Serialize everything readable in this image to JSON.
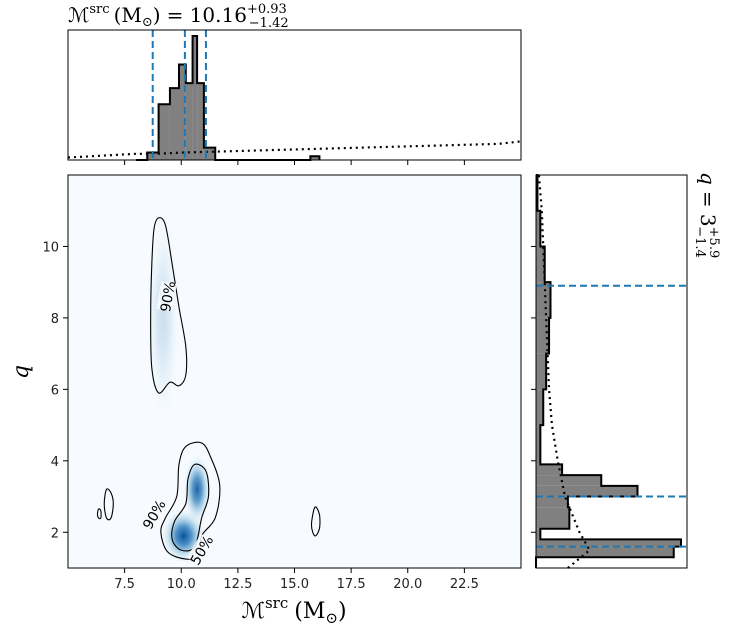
{
  "chart_data": {
    "type": "corner",
    "top_title": {
      "symbol": "ℳ",
      "sup": "src",
      "unit": "(M",
      "unit_sub": "⊙",
      "unit_close": ")",
      "equals": "= 10.16",
      "plus": "+0.93",
      "minus": "−1.42"
    },
    "right_title": {
      "symbol": "q",
      "equals": "= 3",
      "plus": "+5.9",
      "minus": "−1.4"
    },
    "xlabel": {
      "symbol": "ℳ",
      "sup": "src",
      "unit": "(M",
      "unit_sub": "⊙",
      "unit_close": ")"
    },
    "ylabel": "q",
    "xlim": [
      5,
      25
    ],
    "ylim": [
      1,
      12
    ],
    "xticks": [
      {
        "value": 7.5,
        "label": "7.5"
      },
      {
        "value": 10.0,
        "label": "10.0"
      },
      {
        "value": 12.5,
        "label": "12.5"
      },
      {
        "value": 15.0,
        "label": "15.0"
      },
      {
        "value": 17.5,
        "label": "17.5"
      },
      {
        "value": 20.0,
        "label": "20.0"
      },
      {
        "value": 22.5,
        "label": "22.5"
      }
    ],
    "yticks": [
      {
        "value": 2,
        "label": "2"
      },
      {
        "value": 4,
        "label": "4"
      },
      {
        "value": 6,
        "label": "6"
      },
      {
        "value": 8,
        "label": "8"
      },
      {
        "value": 10,
        "label": "10"
      }
    ],
    "mc_quantile_lines": [
      8.74,
      10.16,
      11.09
    ],
    "q_quantile_lines": [
      1.6,
      3.0,
      8.9
    ],
    "mc_histogram": {
      "bin_edges": [
        8.0,
        8.5,
        9.0,
        9.5,
        9.9,
        10.2,
        10.5,
        10.7,
        11.0,
        11.5,
        15.7,
        16.1
      ],
      "density": [
        0.0,
        0.06,
        0.45,
        0.58,
        0.77,
        0.62,
        1.0,
        0.62,
        0.1,
        0.0,
        0.03
      ]
    },
    "mc_prior_dotted": {
      "x": [
        5,
        6,
        7,
        8,
        9,
        10,
        12,
        14,
        16,
        18,
        20,
        22,
        24,
        25
      ],
      "y": [
        0.02,
        0.03,
        0.04,
        0.05,
        0.05,
        0.06,
        0.07,
        0.08,
        0.09,
        0.1,
        0.11,
        0.12,
        0.13,
        0.15
      ]
    },
    "q_histogram": {
      "bin_edges": [
        1.0,
        1.3,
        1.6,
        1.8,
        2.1,
        2.7,
        3.0,
        3.3,
        3.6,
        3.9,
        5.0,
        6.0,
        7.0,
        8.0,
        9.0,
        10.0,
        11.0,
        12.0
      ],
      "density": [
        0.0,
        0.95,
        1.0,
        0.03,
        0.23,
        0.22,
        0.7,
        0.45,
        0.18,
        0.03,
        0.05,
        0.07,
        0.09,
        0.1,
        0.06,
        0.03,
        0.01
      ]
    },
    "q_prior_dotted": {
      "y": [
        1.0,
        1.5,
        2.0,
        2.5,
        3.0,
        4.0,
        5.0,
        6.0,
        7.0,
        8.0,
        9.0,
        10.0,
        11.0,
        12.0
      ],
      "x": [
        0.22,
        0.37,
        0.3,
        0.25,
        0.2,
        0.15,
        0.11,
        0.09,
        0.08,
        0.07,
        0.06,
        0.05,
        0.04,
        0.02
      ]
    },
    "density_blobs": [
      {
        "mc": 10.1,
        "q": 1.9,
        "sigma_mc": 0.45,
        "sigma_q": 0.35,
        "weight": 1.0
      },
      {
        "mc": 10.7,
        "q": 3.2,
        "sigma_mc": 0.28,
        "sigma_q": 0.45,
        "weight": 0.9
      },
      {
        "mc": 9.2,
        "q": 8.0,
        "sigma_mc": 0.35,
        "sigma_q": 1.4,
        "weight": 0.18
      }
    ],
    "contours": [
      {
        "level": "90%",
        "points": [
          [
            9.0,
            10.8
          ],
          [
            9.3,
            10.6
          ],
          [
            9.6,
            9.5
          ],
          [
            9.9,
            8.3
          ],
          [
            10.2,
            7.2
          ],
          [
            10.2,
            6.4
          ],
          [
            9.9,
            6.1
          ],
          [
            9.5,
            6.2
          ],
          [
            9.0,
            5.9
          ],
          [
            8.7,
            6.6
          ],
          [
            8.65,
            8.0
          ],
          [
            8.7,
            9.5
          ],
          [
            8.8,
            10.5
          ]
        ]
      },
      {
        "level": "90%",
        "points": [
          [
            10.2,
            4.4
          ],
          [
            10.9,
            4.5
          ],
          [
            11.3,
            4.1
          ],
          [
            11.7,
            3.3
          ],
          [
            11.5,
            2.4
          ],
          [
            10.9,
            1.9
          ],
          [
            10.8,
            1.35
          ],
          [
            10.2,
            1.25
          ],
          [
            9.4,
            1.45
          ],
          [
            9.1,
            2.0
          ],
          [
            9.3,
            2.4
          ],
          [
            9.8,
            3.0
          ],
          [
            9.9,
            3.9
          ]
        ]
      },
      {
        "level": "50%",
        "points": [
          [
            10.6,
            3.9
          ],
          [
            11.1,
            3.7
          ],
          [
            11.2,
            3.0
          ],
          [
            10.9,
            2.4
          ],
          [
            10.6,
            1.6
          ],
          [
            10.0,
            1.5
          ],
          [
            9.6,
            1.8
          ],
          [
            9.7,
            2.3
          ],
          [
            10.2,
            2.8
          ],
          [
            10.3,
            3.5
          ]
        ]
      },
      {
        "level": "",
        "points": [
          [
            6.7,
            3.2
          ],
          [
            6.9,
            3.1
          ],
          [
            7.0,
            2.8
          ],
          [
            6.9,
            2.4
          ],
          [
            6.7,
            2.4
          ],
          [
            6.6,
            2.8
          ]
        ]
      },
      {
        "level": "",
        "points": [
          [
            6.35,
            2.65
          ],
          [
            6.45,
            2.6
          ],
          [
            6.45,
            2.4
          ],
          [
            6.35,
            2.4
          ],
          [
            6.3,
            2.5
          ]
        ]
      },
      {
        "level": "",
        "points": [
          [
            15.9,
            2.7
          ],
          [
            16.1,
            2.5
          ],
          [
            16.1,
            2.1
          ],
          [
            15.9,
            1.9
          ],
          [
            15.75,
            2.2
          ]
        ]
      }
    ],
    "contour_labels": [
      {
        "text": "90%",
        "mc": 9.4,
        "q": 8.6,
        "rotation": -80
      },
      {
        "text": "90%",
        "mc": 8.8,
        "q": 2.5,
        "rotation": -60
      },
      {
        "text": "50%",
        "mc": 10.9,
        "q": 1.5,
        "rotation": -60
      }
    ],
    "colors": {
      "hist_fill": "#808080",
      "quantile": "#1f77b4",
      "density_max": "#08306b",
      "density_bg": "#f7fbff"
    }
  }
}
